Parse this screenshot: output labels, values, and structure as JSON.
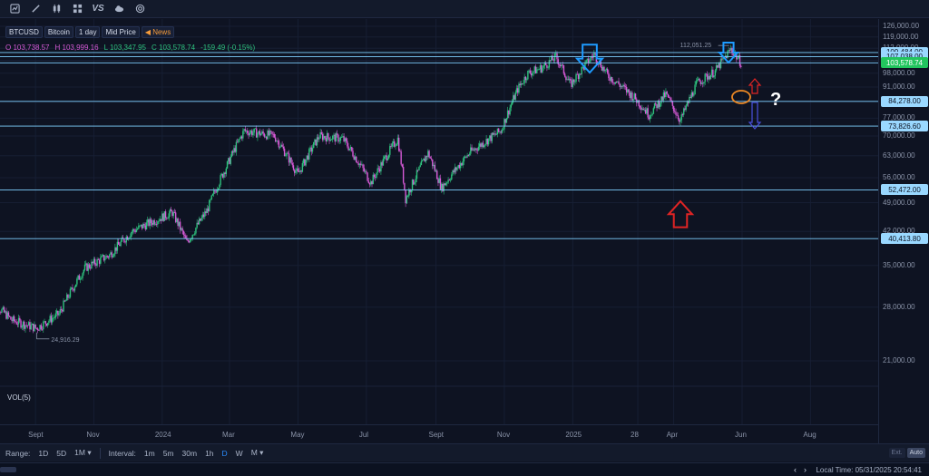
{
  "toolbar": {
    "icons": [
      "chart-type-icon",
      "draw-icon",
      "candles-icon",
      "indicators-icon",
      "compare-icon",
      "cloud-icon",
      "replay-icon"
    ],
    "vs_label": "VS"
  },
  "legend": {
    "symbol": "BTCUSD",
    "name": "Bitcoin",
    "interval": "1 day",
    "price_type": "Mid Price",
    "news": "News",
    "open_key": "O",
    "open": "103,738.57",
    "high_key": "H",
    "high": "103,999.16",
    "low_key": "L",
    "low": "103,347.95",
    "close_key": "C",
    "close": "103,578.74",
    "change": "-159.49 (-0.15%)"
  },
  "annotations": {
    "high_label": "112,051.25",
    "low_label": "24,916.29",
    "question": "?"
  },
  "volume_label": "VOL(5)",
  "price_axis": {
    "ticks": [
      "126,000.00",
      "119,000.00",
      "112,000.00",
      "105,000.00",
      "98,000.00",
      "91,000.00",
      "84,000.00",
      "77,000.00",
      "70,000.00",
      "63,000.00",
      "56,000.00",
      "49,000.00",
      "42,000.00",
      "35,000.00",
      "28,000.00",
      "21,000.00"
    ],
    "levels": [
      {
        "label": "109,484.00",
        "current": false
      },
      {
        "label": "107,038.00",
        "current": false
      },
      {
        "label": "103,578.74",
        "current": true
      },
      {
        "label": "84,278.00",
        "current": false
      },
      {
        "label": "73,826.60",
        "current": false
      },
      {
        "label": "52,472.00",
        "current": false
      },
      {
        "label": "40,413.80",
        "current": false
      }
    ]
  },
  "time_axis": [
    "Sept",
    "Nov",
    "2024",
    "Mar",
    "May",
    "Jul",
    "Sept",
    "Nov",
    "2025",
    "28",
    "Apr",
    "Jun",
    "Aug"
  ],
  "bottombar": {
    "range_label": "Range:",
    "ranges": [
      "1D",
      "5D",
      "1M"
    ],
    "interval_label": "Interval:",
    "intervals": [
      "1m",
      "5m",
      "30m",
      "1h",
      "D",
      "W",
      "M"
    ],
    "active_interval": "D",
    "ext": "Ext.",
    "auto": "Auto"
  },
  "statusbar": {
    "local_time": "Local Time: 05/31/2025 20:54:41"
  },
  "colors": {
    "bg": "#0e1322",
    "up": "#2ec27e",
    "down": "#d65ad6",
    "level_line": "#7fd0ff",
    "arrow_blue": "#1e9bff",
    "arrow_red": "#e02424",
    "circle_orange": "#f08a24"
  },
  "chart_data": {
    "type": "candlestick",
    "title": "",
    "xlabel": "",
    "ylabel": "",
    "ylim": [
      14000,
      130000
    ],
    "ylim_scale": "log",
    "key_levels": [
      109484.0,
      107038.0,
      103578.74,
      84278.0,
      73826.6,
      52472.0,
      40413.8
    ],
    "close_path": [
      [
        "2023-08-01",
        29000
      ],
      [
        "2023-08-20",
        26100
      ],
      [
        "2023-09-11",
        25000
      ],
      [
        "2023-10-01",
        27000
      ],
      [
        "2023-10-24",
        34500
      ],
      [
        "2023-11-15",
        37000
      ],
      [
        "2023-12-05",
        42000
      ],
      [
        "2024-01-10",
        46500
      ],
      [
        "2024-01-23",
        39500
      ],
      [
        "2024-02-10",
        47000
      ],
      [
        "2024-02-28",
        60000
      ],
      [
        "2024-03-14",
        72000
      ],
      [
        "2024-04-10",
        70000
      ],
      [
        "2024-05-01",
        57000
      ],
      [
        "2024-05-20",
        70000
      ],
      [
        "2024-06-10",
        69000
      ],
      [
        "2024-07-05",
        54500
      ],
      [
        "2024-07-29",
        69000
      ],
      [
        "2024-08-05",
        50000
      ],
      [
        "2024-08-25",
        64000
      ],
      [
        "2024-09-06",
        53000
      ],
      [
        "2024-10-01",
        64000
      ],
      [
        "2024-10-29",
        72000
      ],
      [
        "2024-11-13",
        90000
      ],
      [
        "2024-11-22",
        98000
      ],
      [
        "2024-12-05",
        101000
      ],
      [
        "2024-12-17",
        107000
      ],
      [
        "2024-12-30",
        92000
      ],
      [
        "2025-01-20",
        108500
      ],
      [
        "2025-02-01",
        97000
      ],
      [
        "2025-02-25",
        86000
      ],
      [
        "2025-03-10",
        78500
      ],
      [
        "2025-03-25",
        87500
      ],
      [
        "2025-04-07",
        76000
      ],
      [
        "2025-04-22",
        93000
      ],
      [
        "2025-05-08",
        99000
      ],
      [
        "2025-05-22",
        111500
      ],
      [
        "2025-05-31",
        103578.74
      ]
    ]
  }
}
